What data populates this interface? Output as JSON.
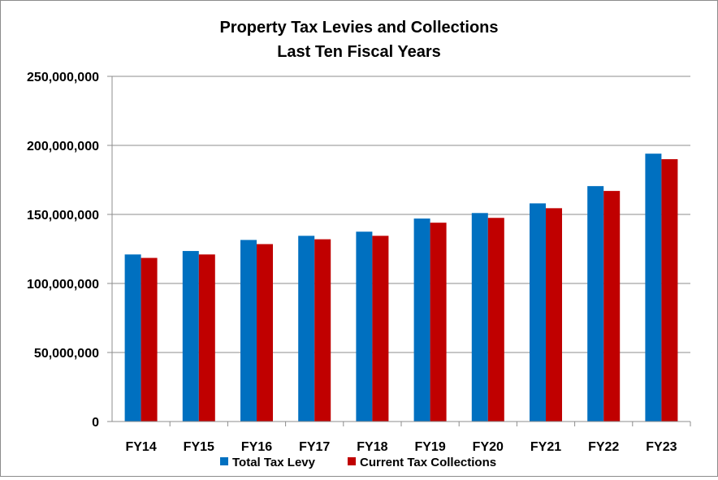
{
  "chart_data": {
    "type": "bar",
    "title": [
      "Property Tax Levies and Collections",
      "Last Ten Fiscal Years"
    ],
    "xlabel": "",
    "ylabel": "",
    "categories": [
      "FY14",
      "FY15",
      "FY16",
      "FY17",
      "FY18",
      "FY19",
      "FY20",
      "FY21",
      "FY22",
      "FY23"
    ],
    "series": [
      {
        "name": "Total Tax Levy",
        "color": "#0070c0",
        "values": [
          121000000,
          123500000,
          131500000,
          134500000,
          137500000,
          147000000,
          151000000,
          158000000,
          170500000,
          194000000
        ]
      },
      {
        "name": "Current Tax Collections",
        "color": "#c00000",
        "values": [
          118500000,
          121000000,
          128500000,
          132000000,
          134500000,
          144000000,
          147500000,
          154500000,
          167000000,
          190000000
        ]
      }
    ],
    "ylim": [
      0,
      250000000
    ],
    "yticks": [
      0,
      50000000,
      100000000,
      150000000,
      200000000,
      250000000
    ],
    "ytick_labels": [
      "0",
      "50,000,000",
      "100,000,000",
      "150,000,000",
      "200,000,000",
      "250,000,000"
    ],
    "grid": true,
    "legend_position": "bottom"
  }
}
